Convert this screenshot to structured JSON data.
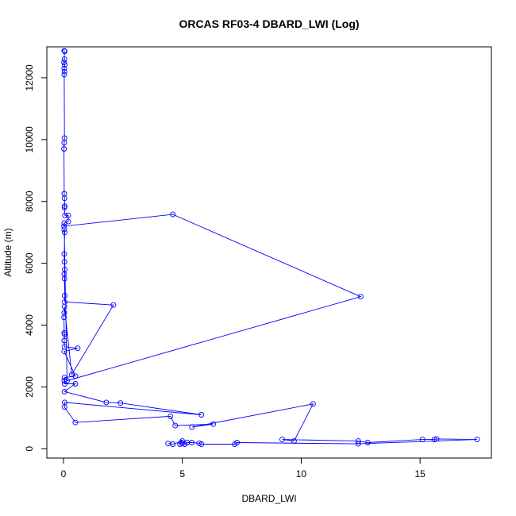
{
  "chart_data": {
    "type": "scatter",
    "title": "ORCAS RF03-4 DBARD_LWI (Log)",
    "xlabel": "DBARD_LWI",
    "ylabel": "Altitude (m)",
    "xlim": [
      -0.7,
      18.0
    ],
    "ylim": [
      -300,
      13000
    ],
    "xticks": [
      0,
      5,
      10,
      15
    ],
    "yticks": [
      0,
      2000,
      4000,
      6000,
      8000,
      10000,
      12000
    ],
    "grid": false,
    "legend": "none",
    "color": "#0000ff",
    "marker": "open-circle",
    "connected": true,
    "points": [
      {
        "x": 0.05,
        "y": 12850
      },
      {
        "x": 0.03,
        "y": 12870
      },
      {
        "x": 0.04,
        "y": 12600
      },
      {
        "x": 0.02,
        "y": 12500
      },
      {
        "x": 0.05,
        "y": 12420
      },
      {
        "x": 0.03,
        "y": 12300
      },
      {
        "x": 0.04,
        "y": 12200
      },
      {
        "x": 0.03,
        "y": 12100
      },
      {
        "x": 0.04,
        "y": 10050
      },
      {
        "x": 0.03,
        "y": 9900
      },
      {
        "x": 0.02,
        "y": 9700
      },
      {
        "x": 0.03,
        "y": 8250
      },
      {
        "x": 0.04,
        "y": 8100
      },
      {
        "x": 0.05,
        "y": 7850
      },
      {
        "x": 0.04,
        "y": 7800
      },
      {
        "x": 0.06,
        "y": 7550
      },
      {
        "x": 0.2,
        "y": 7550
      },
      {
        "x": 0.2,
        "y": 7350
      },
      {
        "x": 0.03,
        "y": 7300
      },
      {
        "x": 0.02,
        "y": 7200
      },
      {
        "x": 4.6,
        "y": 7580
      },
      {
        "x": 12.5,
        "y": 4920
      },
      {
        "x": 0.15,
        "y": 2200
      },
      {
        "x": 0.03,
        "y": 7100
      },
      {
        "x": 0.05,
        "y": 7000
      },
      {
        "x": 0.03,
        "y": 6300
      },
      {
        "x": 0.04,
        "y": 6050
      },
      {
        "x": 0.05,
        "y": 5800
      },
      {
        "x": 0.03,
        "y": 5650
      },
      {
        "x": 0.04,
        "y": 5500
      },
      {
        "x": 0.05,
        "y": 4950
      },
      {
        "x": 0.05,
        "y": 4750
      },
      {
        "x": 2.1,
        "y": 4650
      },
      {
        "x": 0.35,
        "y": 2400
      },
      {
        "x": 0.04,
        "y": 4600
      },
      {
        "x": 0.03,
        "y": 4400
      },
      {
        "x": 0.02,
        "y": 4250
      },
      {
        "x": 0.03,
        "y": 3750
      },
      {
        "x": 0.05,
        "y": 3700
      },
      {
        "x": 0.03,
        "y": 3500
      },
      {
        "x": 0.04,
        "y": 3300
      },
      {
        "x": 0.6,
        "y": 3250
      },
      {
        "x": 0.03,
        "y": 3150
      },
      {
        "x": 0.5,
        "y": 2350
      },
      {
        "x": 0.04,
        "y": 2300
      },
      {
        "x": 0.03,
        "y": 2200
      },
      {
        "x": 0.05,
        "y": 2100
      },
      {
        "x": 0.5,
        "y": 2100
      },
      {
        "x": 0.04,
        "y": 1850
      },
      {
        "x": 1.8,
        "y": 1500
      },
      {
        "x": 2.4,
        "y": 1480
      },
      {
        "x": 5.8,
        "y": 1100
      },
      {
        "x": 0.05,
        "y": 1500
      },
      {
        "x": 0.04,
        "y": 1350
      },
      {
        "x": 0.5,
        "y": 850
      },
      {
        "x": 4.5,
        "y": 1050
      },
      {
        "x": 4.7,
        "y": 750
      },
      {
        "x": 6.3,
        "y": 800
      },
      {
        "x": 5.4,
        "y": 700
      },
      {
        "x": 10.5,
        "y": 1450
      },
      {
        "x": 9.7,
        "y": 250
      },
      {
        "x": 9.2,
        "y": 300
      },
      {
        "x": 12.4,
        "y": 250
      },
      {
        "x": 12.8,
        "y": 200
      },
      {
        "x": 15.1,
        "y": 300
      },
      {
        "x": 15.6,
        "y": 300
      },
      {
        "x": 15.7,
        "y": 320
      },
      {
        "x": 17.4,
        "y": 300
      },
      {
        "x": 12.4,
        "y": 160
      },
      {
        "x": 7.3,
        "y": 200
      },
      {
        "x": 7.2,
        "y": 150
      },
      {
        "x": 5.8,
        "y": 150
      },
      {
        "x": 5.7,
        "y": 180
      },
      {
        "x": 5.4,
        "y": 200
      },
      {
        "x": 5.2,
        "y": 200
      },
      {
        "x": 5.1,
        "y": 150
      },
      {
        "x": 5.0,
        "y": 180
      },
      {
        "x": 4.95,
        "y": 200
      },
      {
        "x": 4.9,
        "y": 150
      },
      {
        "x": 5.0,
        "y": 250
      },
      {
        "x": 4.6,
        "y": 150
      },
      {
        "x": 4.4,
        "y": 170
      }
    ]
  }
}
